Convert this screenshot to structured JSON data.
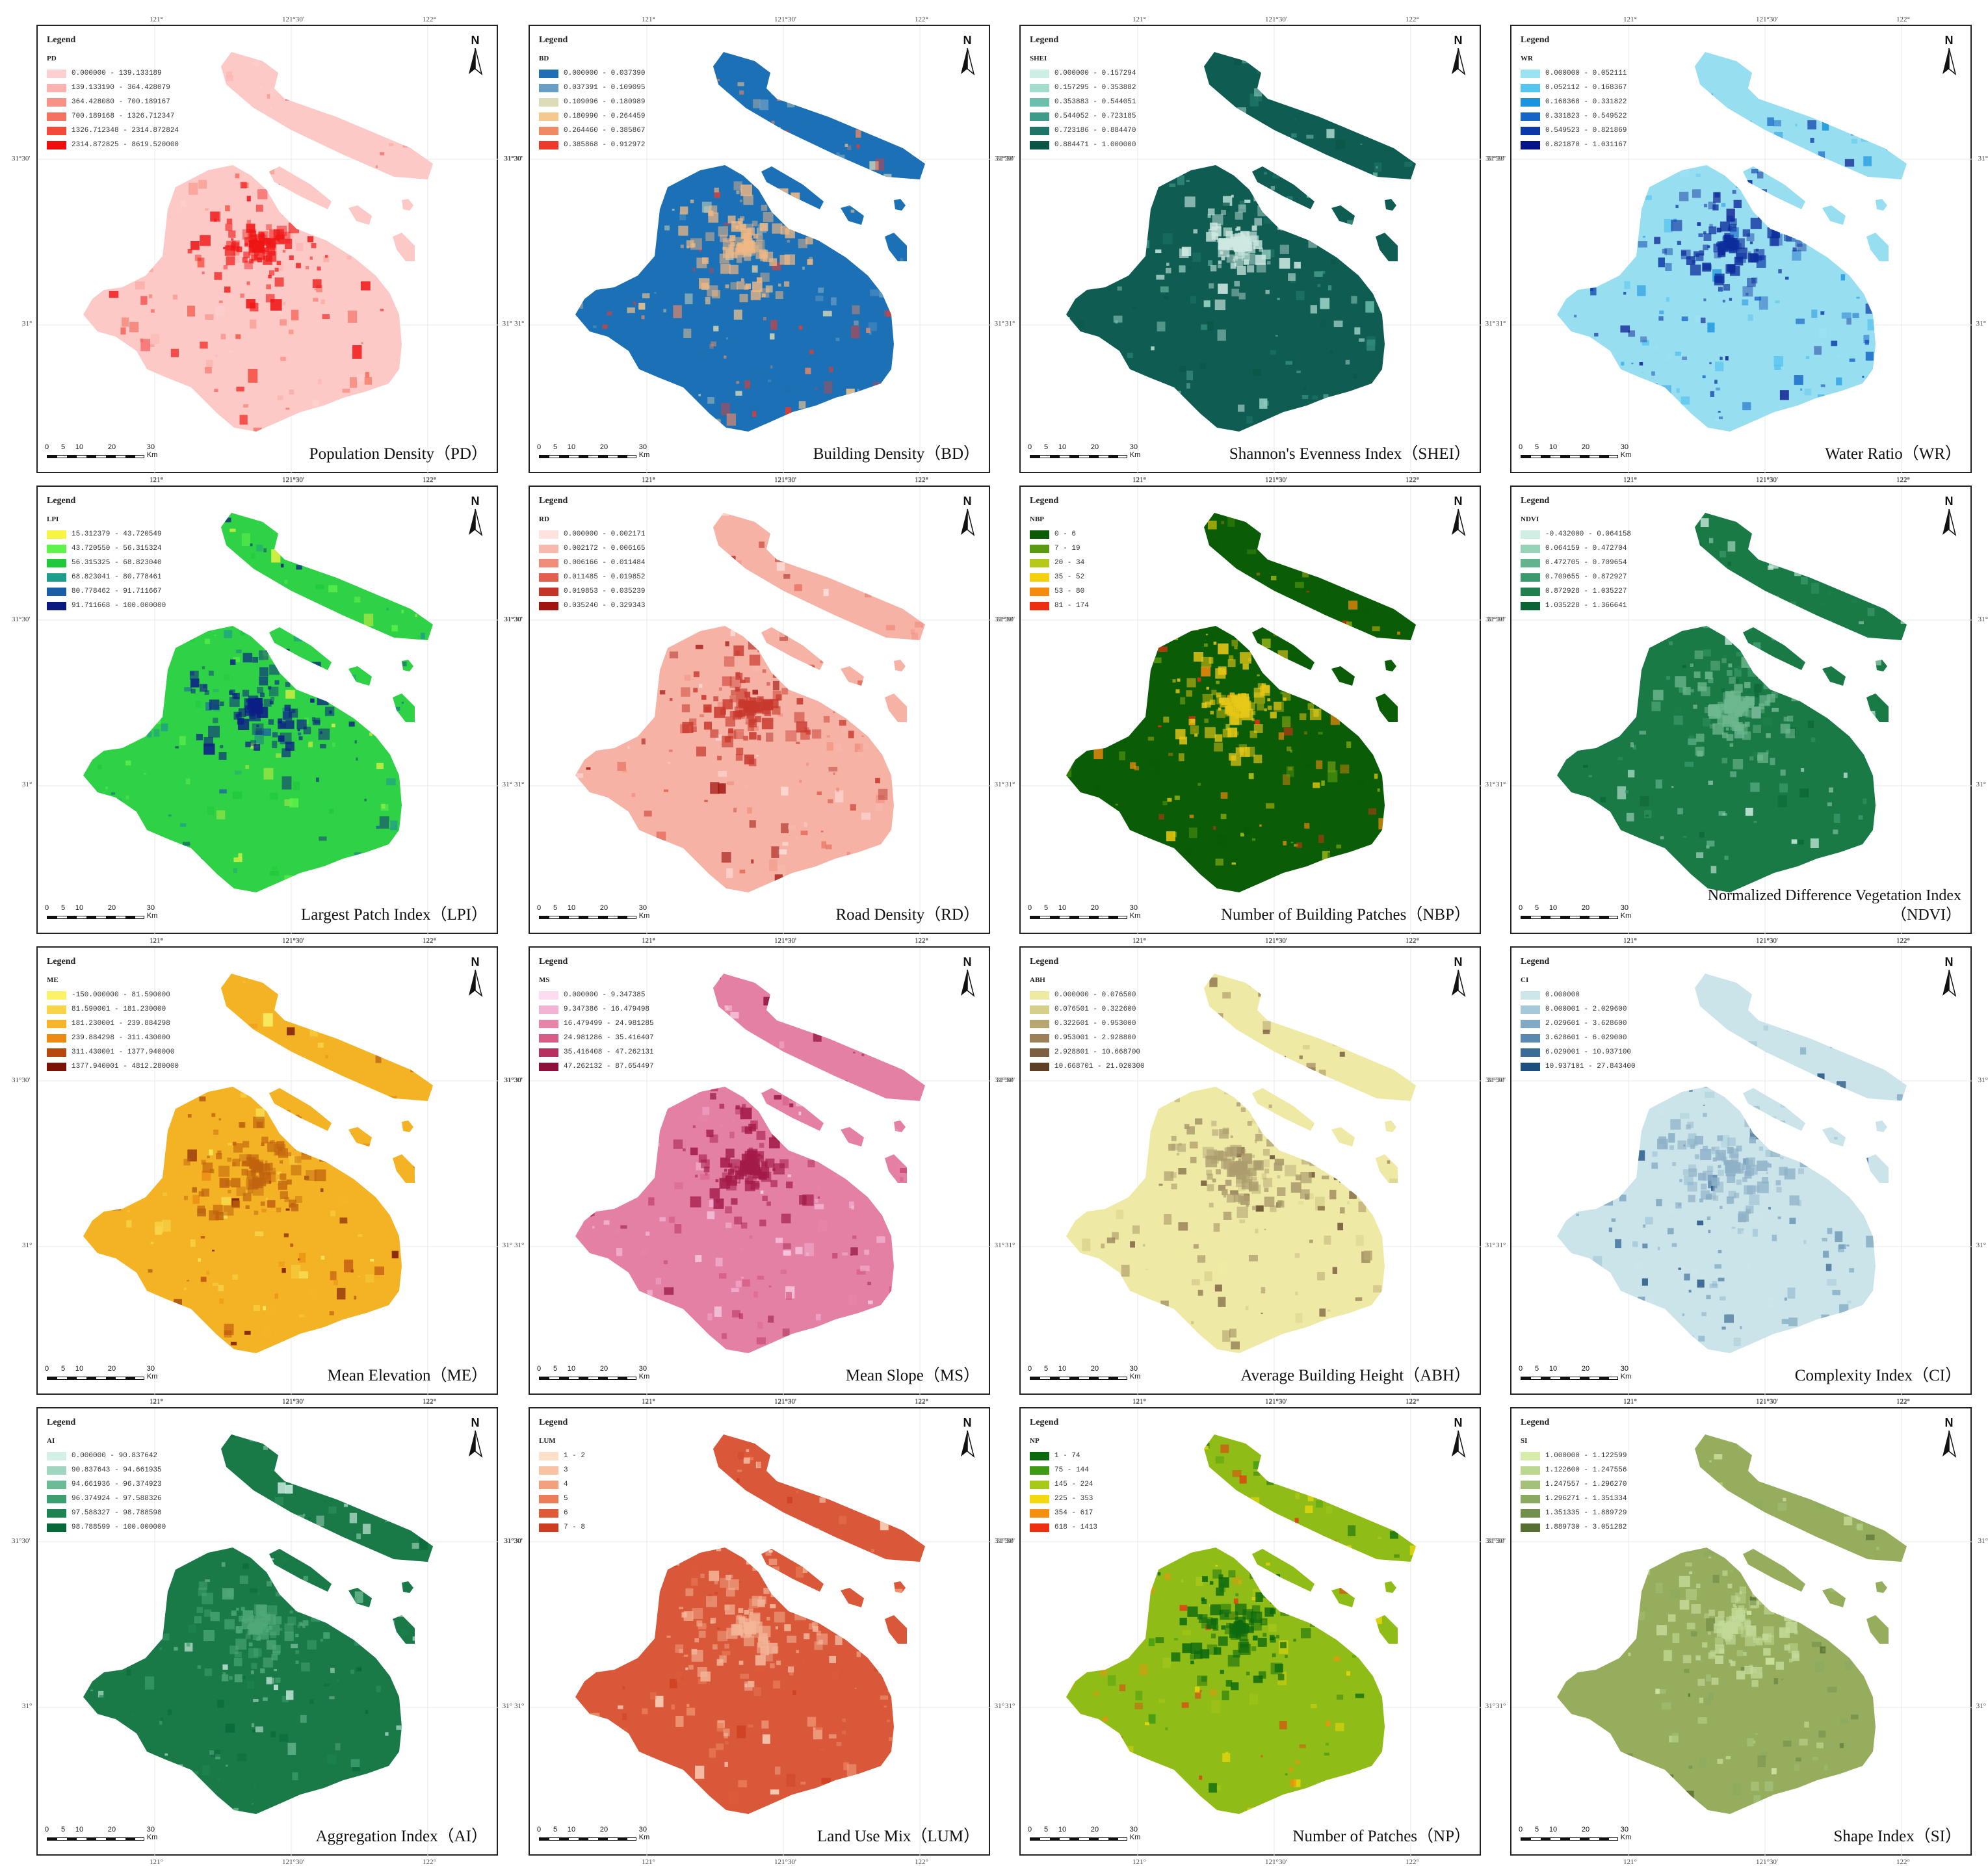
{
  "legend_heading": "Legend",
  "north_label": "N",
  "scale_labels": [
    "0",
    "5",
    "10",
    "20",
    "30 Km"
  ],
  "coords": {
    "lon_121": "121°",
    "lon_121_30": "121°30'",
    "lon_122": "122°",
    "lat_31_30": "31°30'",
    "lat_31": "31°"
  },
  "panels": [
    {
      "code": "PD",
      "title": "Population Density（PD）",
      "colors": [
        "#fcd0d0",
        "#fbb3b0",
        "#f79386",
        "#f5735e",
        "#f34a3a",
        "#f00d0d"
      ],
      "base": "#fcc9c6",
      "hot": "#ef1515",
      "classes": [
        "0.000000 - 139.133189",
        "139.133190 - 364.428079",
        "364.428080 - 700.189167",
        "700.189168 - 1326.712347",
        "1326.712348 - 2314.872824",
        "2314.872825 - 8619.520000"
      ]
    },
    {
      "code": "BD",
      "title": "Building Density（BD）",
      "colors": [
        "#1f6fb4",
        "#6a9fc5",
        "#dcdcb8",
        "#f6c88e",
        "#f08a64",
        "#ee3a2c"
      ],
      "base": "#1c70b5",
      "hot": "#f0b884",
      "classes": [
        "0.000000 - 0.037390",
        "0.037391 - 0.109095",
        "0.109096 - 0.180989",
        "0.180990 - 0.264459",
        "0.264460 - 0.385867",
        "0.385868 - 0.912972"
      ]
    },
    {
      "code": "SHEI",
      "title": "Shannon's Evenness Index（SHEI）",
      "colors": [
        "#cceee4",
        "#a3dccd",
        "#6bbfab",
        "#3e9a89",
        "#1f7668",
        "#0b5547"
      ],
      "base": "#0f5c52",
      "hot": "#cfe9e2",
      "classes": [
        "0.000000 - 0.157294",
        "0.157295 - 0.353882",
        "0.353883 - 0.544051",
        "0.544052 - 0.723185",
        "0.723186 - 0.884470",
        "0.884471 - 1.000000"
      ]
    },
    {
      "code": "WR",
      "title": "Water Ratio（WR）",
      "colors": [
        "#9be2f3",
        "#55c4ee",
        "#1a94de",
        "#1565c8",
        "#0b3aa8",
        "#06148a"
      ],
      "base": "#98def1",
      "hot": "#0d2d9c",
      "classes": [
        "0.000000 - 0.052111",
        "0.052112 - 0.168367",
        "0.168368 - 0.331822",
        "0.331823 - 0.549522",
        "0.549523 - 0.821869",
        "0.821870 - 1.031167"
      ]
    },
    {
      "code": "LPI",
      "title": "Largest Patch Index（LPI）",
      "colors": [
        "#f5f542",
        "#5ef24a",
        "#1fc93b",
        "#1e9c8c",
        "#1a5ea6",
        "#0b1a80"
      ],
      "base": "#2fd146",
      "hot": "#0c1f86",
      "classes": [
        "15.312379 - 43.720549",
        "43.720550 - 56.315324",
        "56.315325 - 68.823040",
        "68.823041 - 80.778461",
        "80.778462 - 91.711667",
        "91.711668 - 100.000000"
      ]
    },
    {
      "code": "RD",
      "title": "Road Density（RD）",
      "colors": [
        "#fde3e0",
        "#f8b8ad",
        "#f18b7a",
        "#e35f4d",
        "#c53326",
        "#a0150f"
      ],
      "base": "#f7b2a6",
      "hot": "#c8382c",
      "classes": [
        "0.000000 - 0.002171",
        "0.002172 - 0.006165",
        "0.006166 - 0.011484",
        "0.011485 - 0.019852",
        "0.019853 - 0.035239",
        "0.035240 - 0.329343"
      ]
    },
    {
      "code": "NBP",
      "title": "Number of Building Patches（NBP）",
      "colors": [
        "#0a5a06",
        "#5a9a10",
        "#b6c91a",
        "#f5d00c",
        "#f58a0c",
        "#ee2e10"
      ],
      "base": "#0b5c07",
      "hot": "#e8c818",
      "classes": [
        "0 - 6",
        "7 - 19",
        "20 - 34",
        "35 - 52",
        "53 - 80",
        "81 - 174"
      ]
    },
    {
      "code": "NDVI",
      "title": "Normalized Difference Vegetation Index（NDVI）",
      "colors": [
        "#cfeee4",
        "#96d3b8",
        "#62b48e",
        "#3a9a6b",
        "#1f804d",
        "#0a6434"
      ],
      "base": "#1a7a46",
      "hot": "#6fb890",
      "classes": [
        "-0.432000 - 0.064158",
        "0.064159 - 0.472704",
        "0.472705 - 0.709654",
        "0.709655 - 0.872927",
        "0.872928 - 1.035227",
        "1.035228 - 1.366641"
      ]
    },
    {
      "code": "ME",
      "title": "Mean Elevation（ME）",
      "colors": [
        "#fbf267",
        "#f8d448",
        "#f5b42a",
        "#ec8a14",
        "#b7470c",
        "#7a1205"
      ],
      "base": "#f3b324",
      "hot": "#c0620e",
      "classes": [
        "-150.000000 - 81.590000",
        "81.590001 - 181.230000",
        "181.230001 - 239.884298",
        "239.884298 - 311.430000",
        "311.430001 - 1377.940000",
        "1377.940001 - 4812.280000"
      ]
    },
    {
      "code": "MS",
      "title": "Mean Slope（MS）",
      "colors": [
        "#fcdcef",
        "#f3b3d3",
        "#e784a8",
        "#d75c86",
        "#b8305f",
        "#8e0f3a"
      ],
      "base": "#e480a4",
      "hot": "#a31a48",
      "classes": [
        "0.000000 - 9.347385",
        "9.347386 - 16.479498",
        "16.479499 - 24.981285",
        "24.981286 - 35.416407",
        "35.416408 - 47.262131",
        "47.262132 - 87.654497"
      ]
    },
    {
      "code": "ABH",
      "title": "Average Building Height（ABH）",
      "colors": [
        "#efeaa2",
        "#d6cf8a",
        "#b8a671",
        "#9b8058",
        "#7d5e3f",
        "#5c3f24"
      ],
      "base": "#eeeaa6",
      "hot": "#ac9c6e",
      "classes": [
        "0.000000 - 0.076500",
        "0.076501 - 0.322600",
        "0.322601 - 0.953000",
        "0.953001 - 2.928800",
        "2.928801 - 10.668700",
        "10.668701 - 21.020300"
      ]
    },
    {
      "code": "CI",
      "title": "Complexity Index（CI）",
      "colors": [
        "#cce6ea",
        "#a6c9d9",
        "#7fa9c5",
        "#5a89af",
        "#3a6c98",
        "#1c4f80"
      ],
      "base": "#cae4e9",
      "hot": "#8fb1c8",
      "classes": [
        "0.000000",
        "0.000001 - 2.029600",
        "2.029601 - 3.628600",
        "3.628601 - 6.029000",
        "6.029001 - 10.937100",
        "10.937101 - 27.843400"
      ]
    },
    {
      "code": "AI",
      "title": "Aggregation Index（AI）",
      "colors": [
        "#d3efe6",
        "#a0d5bf",
        "#6dba96",
        "#3d9e6f",
        "#1d8350",
        "#07683a"
      ],
      "base": "#197a47",
      "hot": "#4fa878",
      "classes": [
        "0.000000 - 90.837642",
        "90.837643 - 94.661935",
        "94.661936 - 96.374923",
        "96.374924 - 97.588326",
        "97.588327 - 98.788598",
        "98.788599 - 100.000000"
      ]
    },
    {
      "code": "LUM",
      "title": "Land Use Mix（LUM）",
      "colors": [
        "#fde0c8",
        "#f9c2a3",
        "#f3a07c",
        "#eb7d58",
        "#df5b38",
        "#cf3d1f"
      ],
      "base": "#d9583a",
      "hot": "#f4b598",
      "classes": [
        "1 - 2",
        "3",
        "4",
        "5",
        "6",
        "7 - 8"
      ]
    },
    {
      "code": "NP",
      "title": "Number of Patches（NP）",
      "colors": [
        "#0a6a0c",
        "#3d9a12",
        "#a8c81a",
        "#f2d80c",
        "#f5900f",
        "#ee2f10"
      ],
      "base": "#8fbc16",
      "hot": "#0c6a0e",
      "classes": [
        "1 - 74",
        "75 - 144",
        "145 - 224",
        "225 - 353",
        "354 - 617",
        "618 - 1413"
      ]
    },
    {
      "code": "SI",
      "title": "Shape Index（SI）",
      "colors": [
        "#d6eca8",
        "#bcd88f",
        "#a3c178",
        "#8aaa60",
        "#718f4a",
        "#576f33"
      ],
      "base": "#97ad5e",
      "hot": "#c3da98",
      "classes": [
        "1.000000 - 1.122599",
        "1.122600 - 1.247556",
        "1.247557 - 1.296270",
        "1.296271 - 1.351334",
        "1.351335 - 1.889729",
        "1.889730 - 3.051282"
      ]
    }
  ]
}
